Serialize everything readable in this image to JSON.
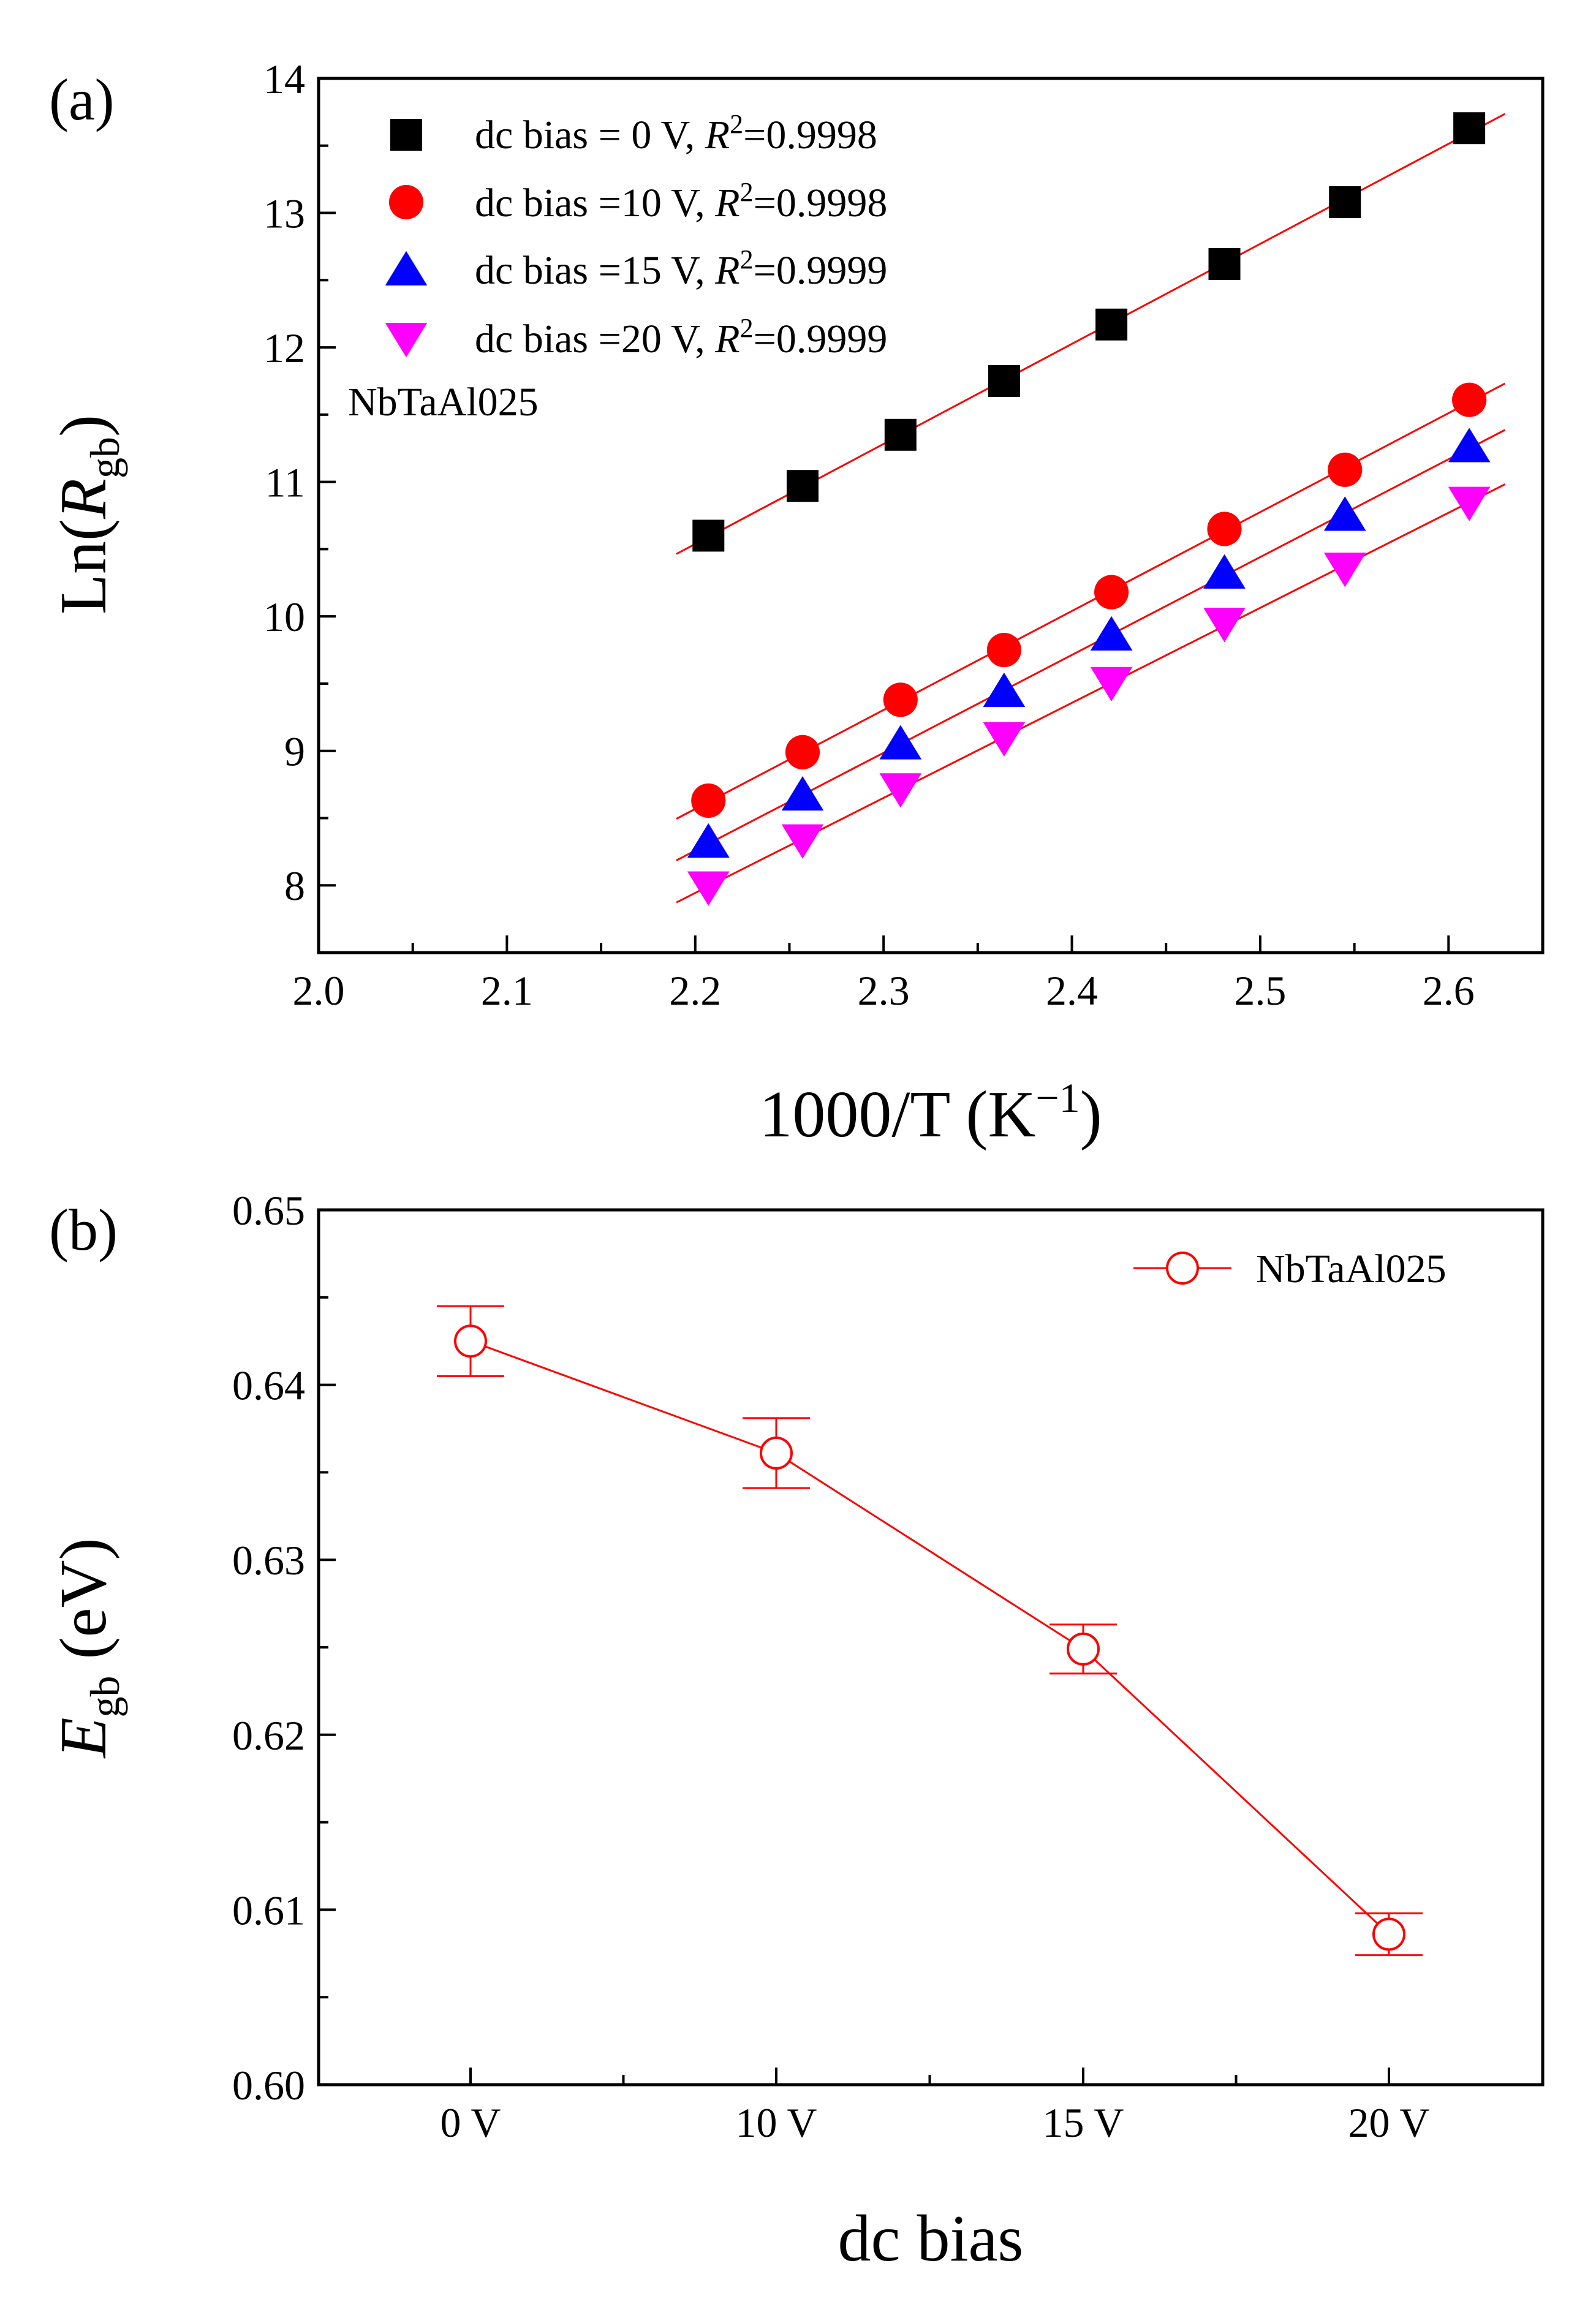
{
  "chart_data": [
    {
      "panel_label": "(a)",
      "type": "scatter",
      "xlabel_main": "1000/T (K",
      "xlabel_sup": "−1",
      "xlabel_close": ")",
      "ylabel_main": "Ln(",
      "ylabel_italic": "R",
      "ylabel_sub": "gb",
      "ylabel_close": ")",
      "xlim": [
        2.0,
        2.65
      ],
      "ylim": [
        7.5,
        14.0
      ],
      "x_ticks": [
        "2.0",
        "2.1",
        "2.2",
        "2.3",
        "2.4",
        "2.5",
        "2.6"
      ],
      "y_ticks": [
        "8",
        "9",
        "10",
        "11",
        "12",
        "13",
        "14"
      ],
      "annotation": "NbTaAl025",
      "grid": false,
      "legend_position": "top-left",
      "x": [
        2.207,
        2.257,
        2.309,
        2.364,
        2.421,
        2.481,
        2.545,
        2.611
      ],
      "fit_range": [
        2.19,
        2.63
      ],
      "series": [
        {
          "name": "dc bias =  0 V, R²=0.9998",
          "legend_prefix": "dc bias =  0 V, ",
          "legend_r2": "0.9998",
          "marker": "square",
          "color": "#000000",
          "values": [
            10.6,
            10.97,
            11.35,
            11.75,
            12.17,
            12.62,
            13.08,
            13.63
          ]
        },
        {
          "name": "dc bias =10 V, R²=0.9998",
          "legend_prefix": "dc bias =10 V, ",
          "legend_r2": "0.9998",
          "marker": "circle",
          "color": "#ff0000",
          "values": [
            8.63,
            8.99,
            9.38,
            9.75,
            10.18,
            10.65,
            11.09,
            11.61
          ]
        },
        {
          "name": "dc bias =15 V, R²=0.9999",
          "legend_prefix": "dc bias =15 V, ",
          "legend_r2": "0.9999",
          "marker": "triangle-up",
          "color": "#0000ff",
          "values": [
            8.32,
            8.67,
            9.05,
            9.44,
            9.86,
            10.32,
            10.75,
            11.26
          ]
        },
        {
          "name": "dc bias =20 V, R²=0.9999",
          "legend_prefix": "dc bias =20 V, ",
          "legend_r2": "0.9999",
          "marker": "triangle-down",
          "color": "#ff00ff",
          "values": [
            7.99,
            8.34,
            8.72,
            9.1,
            9.51,
            9.95,
            10.36,
            10.85
          ]
        }
      ],
      "fit_color": "#ff0000"
    },
    {
      "panel_label": "(b)",
      "type": "line",
      "xlabel": "dc bias",
      "ylabel_italic": "E",
      "ylabel_sub": "gb",
      "ylabel_rest": " (eV)",
      "categories": [
        "0 V",
        "10 V",
        "15 V",
        "20 V"
      ],
      "values": [
        0.6425,
        0.6361,
        0.6249,
        0.6086
      ],
      "errors": [
        0.002,
        0.002,
        0.0014,
        0.0012
      ],
      "ylim": [
        0.6,
        0.65
      ],
      "y_ticks": [
        "0.60",
        "0.61",
        "0.62",
        "0.63",
        "0.64",
        "0.65"
      ],
      "legend": "NbTaAl025",
      "legend_position": "top-right",
      "color": "#ff0000",
      "marker": "open-circle",
      "grid": false
    }
  ]
}
